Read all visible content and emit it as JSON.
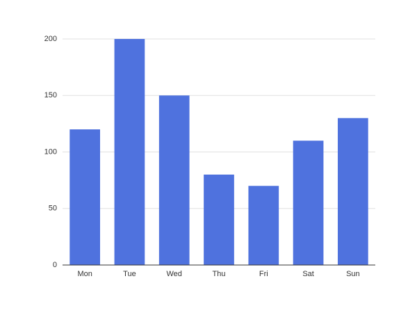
{
  "chart_data": {
    "type": "bar",
    "categories": [
      "Mon",
      "Tue",
      "Wed",
      "Thu",
      "Fri",
      "Sat",
      "Sun"
    ],
    "values": [
      120,
      200,
      150,
      80,
      70,
      110,
      130
    ],
    "color": "#4f72de",
    "ylim": [
      0,
      200
    ],
    "yticks": [
      0,
      50,
      100,
      150,
      200
    ],
    "grid": true
  }
}
